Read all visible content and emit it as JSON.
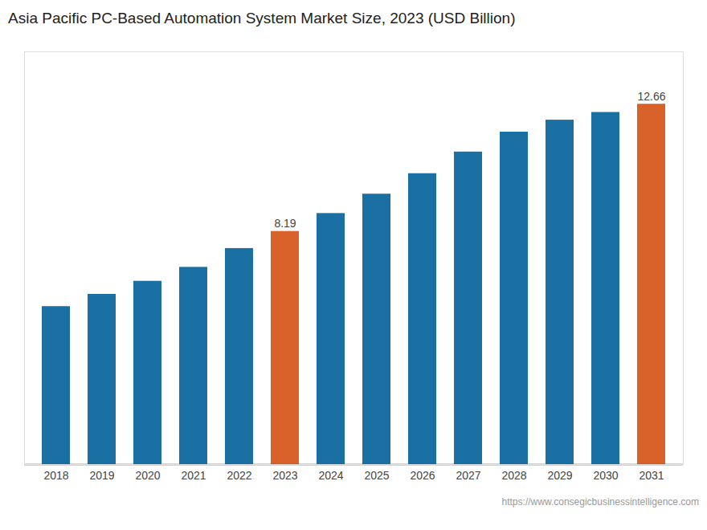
{
  "chart_data": {
    "type": "bar",
    "title": "Asia Pacific PC-Based Automation System Market Size, 2023 (USD Billion)",
    "categories": [
      "2018",
      "2019",
      "2020",
      "2021",
      "2022",
      "2023",
      "2024",
      "2025",
      "2026",
      "2027",
      "2028",
      "2029",
      "2030",
      "2031"
    ],
    "values": [
      5.55,
      5.98,
      6.44,
      6.93,
      7.59,
      8.19,
      8.82,
      9.5,
      10.22,
      10.98,
      11.68,
      12.1,
      12.37,
      12.66
    ],
    "value_labels": [
      null,
      null,
      null,
      null,
      null,
      "8.19",
      null,
      null,
      null,
      null,
      null,
      null,
      null,
      "12.66"
    ],
    "colors": [
      "#1a6fa3",
      "#1a6fa3",
      "#1a6fa3",
      "#1a6fa3",
      "#1a6fa3",
      "#d9622b",
      "#1a6fa3",
      "#1a6fa3",
      "#1a6fa3",
      "#1a6fa3",
      "#1a6fa3",
      "#1a6fa3",
      "#1a6fa3",
      "#d9622b"
    ],
    "ylim": [
      0,
      14.5
    ],
    "tick_labels": "x",
    "grid": false,
    "annotations": [
      "https://www.consegicbusinessintelligence.com"
    ]
  }
}
